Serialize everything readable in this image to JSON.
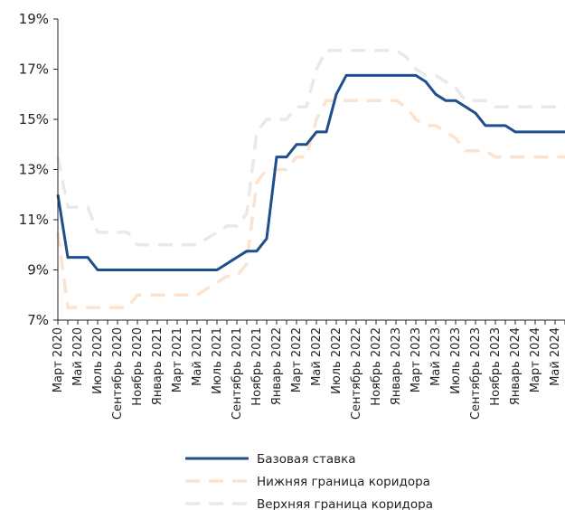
{
  "chart_data": {
    "type": "line",
    "title": "",
    "xlabel": "",
    "ylabel": "",
    "ylim": [
      7,
      19
    ],
    "yticks": [
      "7%",
      "9%",
      "11%",
      "13%",
      "15%",
      "17%",
      "19%"
    ],
    "y_tick_values": [
      7,
      9,
      11,
      13,
      15,
      17,
      19
    ],
    "grid": false,
    "legend_position": "bottom",
    "x_tick_labels": [
      "Март 2020",
      "Май 2020",
      "Июль 2020",
      "Сентябрь 2020",
      "Ноябрь 2020",
      "Январь 2021",
      "Март 2021",
      "Май 2021",
      "Июль 2021",
      "Сентябрь 2021",
      "Ноябрь 2021",
      "Январь 2022",
      "Март 2022",
      "Май 2022",
      "Июль 2022",
      "Сентябрь 2022",
      "Ноябрь 2022",
      "Январь 2023",
      "Март 2023",
      "Май 2023",
      "Июль 2023",
      "Сентябрь 2023",
      "Ноябрь 2023",
      "Январь 2024",
      "Март 2024",
      "Май 2024"
    ],
    "x": [
      "2020-03",
      "2020-04",
      "2020-05",
      "2020-06",
      "2020-07",
      "2020-08",
      "2020-09",
      "2020-10",
      "2020-11",
      "2020-12",
      "2021-01",
      "2021-02",
      "2021-03",
      "2021-04",
      "2021-05",
      "2021-06",
      "2021-07",
      "2021-08",
      "2021-09",
      "2021-10",
      "2021-11",
      "2021-12",
      "2022-01",
      "2022-02",
      "2022-03",
      "2022-04",
      "2022-05",
      "2022-06",
      "2022-07",
      "2022-08",
      "2022-09",
      "2022-10",
      "2022-11",
      "2022-12",
      "2023-01",
      "2023-02",
      "2023-03",
      "2023-04",
      "2023-05",
      "2023-06",
      "2023-07",
      "2023-08",
      "2023-09",
      "2023-10",
      "2023-11",
      "2023-12",
      "2024-01",
      "2024-02",
      "2024-03",
      "2024-04",
      "2024-05",
      "2024-06"
    ],
    "series": [
      {
        "name": "Базовая ставка",
        "color": "#1f4e8c",
        "style": "solid",
        "values": [
          12,
          9.5,
          9.5,
          9.5,
          9,
          9,
          9,
          9,
          9,
          9,
          9,
          9,
          9,
          9,
          9,
          9,
          9,
          9.25,
          9.5,
          9.75,
          9.75,
          10.25,
          13.5,
          13.5,
          14,
          14,
          14.5,
          14.5,
          16,
          16.75,
          16.75,
          16.75,
          16.75,
          16.75,
          16.75,
          16.75,
          16.75,
          16.5,
          16,
          15.75,
          15.75,
          15.5,
          15.25,
          14.75,
          14.75,
          14.75,
          14.5,
          14.5,
          14.5,
          14.5,
          14.5,
          14.5
        ]
      },
      {
        "name": "Нижняя граница коридора",
        "color": "#fbe3cf",
        "style": "dashed",
        "values": [
          10.5,
          7.5,
          7.5,
          7.5,
          7.5,
          7.5,
          7.5,
          7.5,
          8,
          8,
          8,
          8,
          8,
          8,
          8,
          8.25,
          8.5,
          8.75,
          8.75,
          9.25,
          12.5,
          13,
          13,
          13,
          13.5,
          13.5,
          15,
          15.75,
          15.75,
          15.75,
          15.75,
          15.75,
          15.75,
          15.75,
          15.75,
          15.5,
          15,
          14.75,
          14.75,
          14.5,
          14.25,
          13.75,
          13.75,
          13.75,
          13.5,
          13.5,
          13.5,
          13.5,
          13.5,
          13.5,
          13.5,
          13.5
        ]
      },
      {
        "name": "Верхняя граница коридора",
        "color": "#e9e9e9",
        "style": "dashed",
        "values": [
          13.5,
          11.5,
          11.5,
          11.5,
          10.5,
          10.5,
          10.5,
          10.5,
          10,
          10,
          10,
          10,
          10,
          10,
          10,
          10.25,
          10.5,
          10.75,
          10.75,
          11.25,
          14.5,
          15,
          15,
          15,
          15.5,
          15.5,
          17,
          17.75,
          17.75,
          17.75,
          17.75,
          17.75,
          17.75,
          17.75,
          17.75,
          17.5,
          17,
          16.75,
          16.75,
          16.5,
          16.25,
          15.75,
          15.75,
          15.75,
          15.5,
          15.5,
          15.5,
          15.5,
          15.5,
          15.5,
          15.5,
          15.5
        ]
      }
    ]
  }
}
